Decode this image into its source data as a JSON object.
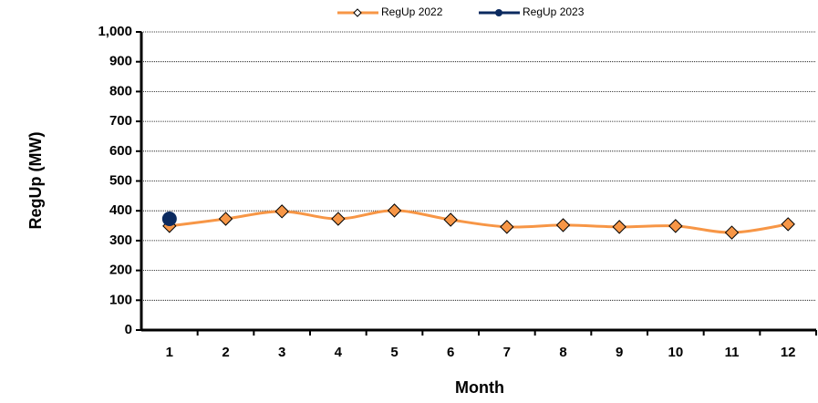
{
  "chart_data": {
    "type": "line",
    "x_label": "Month",
    "y_label": "RegUp (MW)",
    "categories": [
      "1",
      "2",
      "3",
      "4",
      "5",
      "6",
      "7",
      "8",
      "9",
      "10",
      "11",
      "12"
    ],
    "series": [
      {
        "name": "RegUp 2022",
        "color": "#f79646",
        "marker": "diamond",
        "values": [
          349,
          373,
          398,
          373,
          401,
          370,
          346,
          352,
          346,
          349,
          327,
          355
        ]
      },
      {
        "name": "RegUp 2023",
        "color": "#0b2a5f",
        "marker": "circle",
        "values": [
          373,
          null,
          null,
          null,
          null,
          null,
          null,
          null,
          null,
          null,
          null,
          null
        ]
      }
    ],
    "ylim": [
      0,
      1000
    ],
    "yticks": [
      0,
      100,
      200,
      300,
      400,
      500,
      600,
      700,
      800,
      900,
      {
        "value": 1000,
        "label": "1,000"
      }
    ],
    "grid": true,
    "legend": "top"
  }
}
